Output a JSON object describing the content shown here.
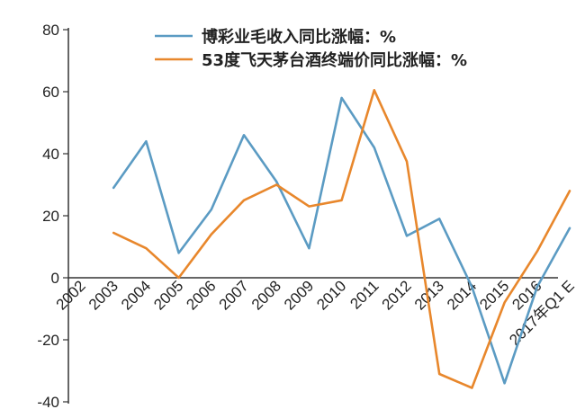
{
  "chart_data": {
    "type": "line",
    "categories": [
      "2002",
      "2003",
      "2004",
      "2005",
      "2006",
      "2007",
      "2008",
      "2009",
      "2010",
      "2011",
      "2012",
      "2013",
      "2014",
      "2015",
      "2016",
      "2017年Q1 E"
    ],
    "series": [
      {
        "name": "博彩业毛收入同比涨幅：%",
        "color": "#5b9bc3",
        "values": [
          null,
          29,
          44,
          8,
          22,
          46,
          31,
          9.5,
          58,
          42,
          13.5,
          19,
          -3,
          -34,
          -3,
          16
        ]
      },
      {
        "name": "53度飞天茅台酒终端价同比涨幅：%",
        "color": "#e8872c",
        "values": [
          null,
          14.5,
          9.5,
          0,
          14,
          25,
          30,
          23,
          25,
          60.5,
          37.5,
          -31,
          -35.5,
          -8,
          8.5,
          28
        ]
      }
    ],
    "y_ticks": [
      "80",
      "60",
      "40",
      "20",
      "0",
      "-20",
      "-40"
    ],
    "ylim": [
      -40,
      80
    ],
    "grid": false,
    "legend_position": "top-center"
  }
}
